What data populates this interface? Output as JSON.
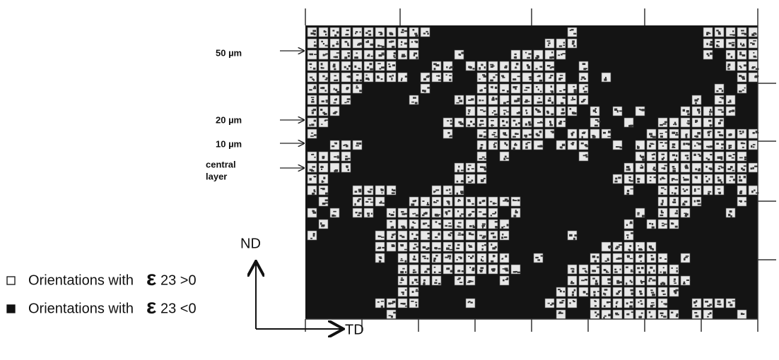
{
  "labels": {
    "l50": "50 µm",
    "l20": "20 µm",
    "l10": "10 µm",
    "central": [
      "central",
      "layer"
    ]
  },
  "axes": {
    "nd": "ND",
    "td": "TD"
  },
  "legend": [
    {
      "text": "Orientations with",
      "symbol": "ε",
      "condition": "23 >0"
    },
    {
      "text": "Orientations with",
      "symbol": "ε",
      "condition": "23 <0"
    }
  ]
}
